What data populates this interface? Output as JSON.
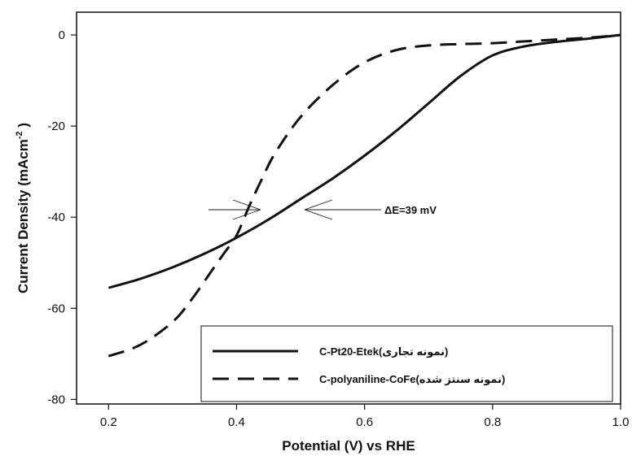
{
  "chart_data": {
    "type": "line",
    "xlabel": "Potential (V) vs RHE",
    "ylabel": "Current Density (mAcm",
    "ylabel_sup": "-2",
    "ylabel_end": " )",
    "xlim": [
      0.15,
      1.0
    ],
    "ylim": [
      -81,
      5
    ],
    "xticks": [
      0.2,
      0.4,
      0.6,
      0.8,
      1.0
    ],
    "xtick_labels": [
      "0.2",
      "0.4",
      "0.6",
      "0.8",
      "1.0"
    ],
    "yticks": [
      0,
      -20,
      -40,
      -60,
      -80
    ],
    "ytick_labels": [
      "0",
      "-20",
      "-40",
      "-60",
      "-80"
    ],
    "grid": false,
    "legend_position": "bottom-right",
    "annotation": "ΔE=39 mV",
    "series": [
      {
        "name": "C-Pt20-Etek(نمونه تجاری)",
        "style": "solid",
        "x": [
          0.2,
          0.25,
          0.3,
          0.35,
          0.4,
          0.45,
          0.5,
          0.55,
          0.6,
          0.65,
          0.7,
          0.75,
          0.8,
          0.85,
          0.9,
          0.95,
          1.0
        ],
        "y": [
          -55.5,
          -53.5,
          -51,
          -48,
          -44.5,
          -40.5,
          -36,
          -31.5,
          -26.5,
          -21,
          -15,
          -9,
          -4.5,
          -2.5,
          -1.5,
          -0.8,
          0
        ]
      },
      {
        "name": "C-polyaniline-CoFe(نمونه سنتز شده)",
        "style": "dashed",
        "x": [
          0.2,
          0.25,
          0.3,
          0.33,
          0.36,
          0.38,
          0.4,
          0.42,
          0.44,
          0.46,
          0.5,
          0.55,
          0.6,
          0.65,
          0.7,
          0.75,
          0.8,
          0.85,
          0.9,
          0.95,
          1.0
        ],
        "y": [
          -70.5,
          -68,
          -63,
          -58,
          -52,
          -48,
          -44,
          -37.5,
          -31.5,
          -26,
          -18,
          -11,
          -6,
          -3.3,
          -2.3,
          -2,
          -1.8,
          -1.4,
          -1,
          -0.6,
          0
        ]
      }
    ]
  }
}
